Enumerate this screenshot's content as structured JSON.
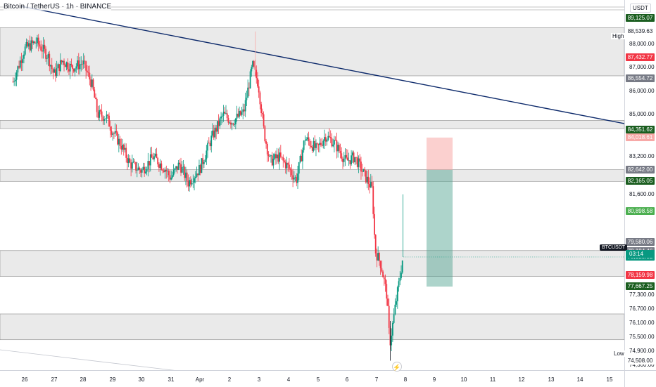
{
  "header": {
    "symbol_title": "Bitcoin / TetherUS · 1h · BINANCE"
  },
  "price_axis": {
    "currency": "USDT",
    "ticks": [
      "88,000.00",
      "87,000.00",
      "86,000.00",
      "85,000.00",
      "83,200.00",
      "81,600.00",
      "77,300.00",
      "76,700.00",
      "76,100.00",
      "75,500.00",
      "74,900.00",
      "74,300.00"
    ],
    "high_label": "High",
    "low_label": "Low",
    "badges": [
      {
        "text": "89,125.07",
        "color": "#1b5e20"
      },
      {
        "text": "88,539.63",
        "color": "#ffffff"
      },
      {
        "text": "87,432.77",
        "color": "#f23645"
      },
      {
        "text": "86,554.72",
        "color": "#787b86"
      },
      {
        "text": "84,351.62",
        "color": "#1b5e20"
      },
      {
        "text": "84,018.61",
        "color": "#f7a9a7"
      },
      {
        "text": "82,642.00",
        "color": "#787b86"
      },
      {
        "text": "82,165.05",
        "color": "#1b5e20"
      },
      {
        "text": "80,898.58",
        "color": "#4caf50"
      },
      {
        "text": "79,580.06",
        "color": "#787b86"
      },
      {
        "text": "79,184.46",
        "color": "#787b86"
      },
      {
        "text": "79,044.82",
        "color": "#f23645"
      },
      {
        "text": "78,925.02",
        "color": "#089981"
      },
      {
        "text": "78,159.98",
        "color": "#f23645"
      },
      {
        "text": "77,667.25",
        "color": "#1b5e20"
      },
      {
        "text": "74,508.00",
        "color": "#ffffff"
      }
    ],
    "symbol_tag": "BTCUSDT",
    "countdown": "03:14"
  },
  "time_axis": {
    "ticks": [
      "26",
      "27",
      "28",
      "29",
      "30",
      "31",
      "Apr",
      "2",
      "3",
      "4",
      "5",
      "6",
      "7",
      "8",
      "9",
      "10",
      "11",
      "12",
      "13",
      "14",
      "15"
    ]
  },
  "colors": {
    "up": "#089981",
    "down": "#f23645",
    "trendline": "#0d2a6b",
    "zone": "#e6e6e6"
  },
  "icons": {
    "flash": "lightning-icon"
  },
  "chart_data": {
    "type": "candlestick",
    "symbol": "BTCUSDT",
    "interval": "1h",
    "x_range": [
      "Mar 25",
      "Apr 15"
    ],
    "y_range": [
      74100,
      89700
    ],
    "high": 88539.63,
    "low": 74508.0,
    "last_price": 78925.02,
    "close_path": [
      {
        "d": 25.6,
        "p": 86400
      },
      {
        "d": 26.0,
        "p": 87800
      },
      {
        "d": 26.4,
        "p": 88100
      },
      {
        "d": 26.8,
        "p": 87500
      },
      {
        "d": 27.0,
        "p": 86700
      },
      {
        "d": 27.3,
        "p": 87300
      },
      {
        "d": 27.6,
        "p": 87000
      },
      {
        "d": 28.0,
        "p": 87200
      },
      {
        "d": 28.3,
        "p": 86300
      },
      {
        "d": 28.5,
        "p": 85000
      },
      {
        "d": 28.8,
        "p": 84900
      },
      {
        "d": 29.0,
        "p": 84300
      },
      {
        "d": 29.3,
        "p": 83700
      },
      {
        "d": 29.6,
        "p": 82900
      },
      {
        "d": 30.0,
        "p": 82600
      },
      {
        "d": 30.4,
        "p": 83200
      },
      {
        "d": 30.8,
        "p": 82700
      },
      {
        "d": 31.0,
        "p": 82300
      },
      {
        "d": 31.3,
        "p": 82900
      },
      {
        "d": 31.6,
        "p": 82100
      },
      {
        "d": 32.0,
        "p": 82700
      },
      {
        "d": 32.4,
        "p": 84000
      },
      {
        "d": 32.8,
        "p": 85000
      },
      {
        "d": 33.1,
        "p": 84700
      },
      {
        "d": 33.5,
        "p": 85100
      },
      {
        "d": 33.8,
        "p": 87100
      },
      {
        "d": 34.0,
        "p": 86300
      },
      {
        "d": 34.2,
        "p": 84200
      },
      {
        "d": 34.4,
        "p": 83000
      },
      {
        "d": 34.7,
        "p": 83200
      },
      {
        "d": 35.0,
        "p": 82800
      },
      {
        "d": 35.3,
        "p": 82200
      },
      {
        "d": 35.6,
        "p": 84000
      },
      {
        "d": 36.0,
        "p": 83500
      },
      {
        "d": 36.3,
        "p": 84100
      },
      {
        "d": 36.6,
        "p": 83800
      },
      {
        "d": 37.0,
        "p": 83000
      },
      {
        "d": 37.3,
        "p": 83200
      },
      {
        "d": 37.6,
        "p": 82500
      },
      {
        "d": 37.9,
        "p": 81800
      },
      {
        "d": 38.0,
        "p": 79200
      },
      {
        "d": 38.2,
        "p": 78600
      },
      {
        "d": 38.4,
        "p": 77300
      },
      {
        "d": 38.5,
        "p": 75200
      },
      {
        "d": 38.7,
        "p": 76900
      },
      {
        "d": 38.85,
        "p": 78100
      },
      {
        "d": 38.95,
        "p": 78925
      }
    ],
    "levels": [
      88539.63,
      86554.72,
      84351.62,
      82642.0,
      82165.05,
      79580.06,
      79044.82,
      78159.98,
      74508.0
    ],
    "zones": [
      [
        86650,
        88700
      ],
      [
        84400,
        84750
      ],
      [
        82150,
        82650
      ],
      [
        78100,
        79200
      ],
      [
        75400,
        76500
      ]
    ],
    "position": {
      "target": 84018.61,
      "entry": 82642.0,
      "stop": 77667.25,
      "type": "long-short-box"
    }
  }
}
